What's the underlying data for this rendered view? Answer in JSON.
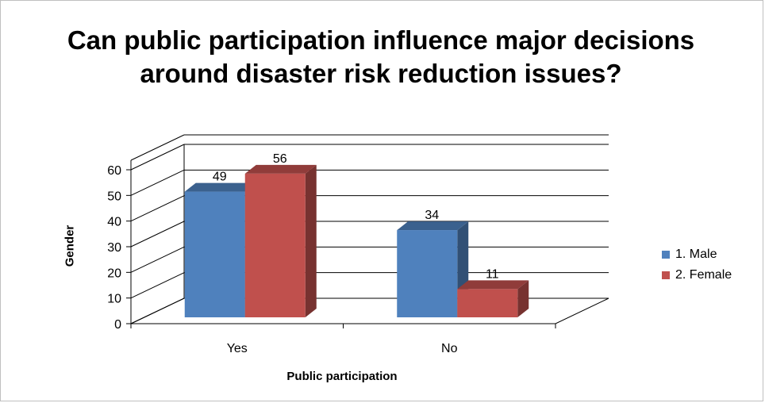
{
  "chart_data": {
    "type": "bar",
    "title": "Can public participation influence major decisions around disaster risk reduction issues?",
    "xlabel": "Public participation",
    "ylabel": "Gender",
    "categories": [
      "Yes",
      "No"
    ],
    "series": [
      {
        "name": "1. Male",
        "values": [
          49,
          34
        ],
        "color": "#4f81bd"
      },
      {
        "name": "2. Female",
        "values": [
          56,
          11
        ],
        "color": "#c0504d"
      }
    ],
    "ylim": [
      0,
      60
    ],
    "yticks": [
      0,
      10,
      20,
      30,
      40,
      50,
      60
    ],
    "grid": true,
    "legend": "right",
    "data_labels": true
  }
}
